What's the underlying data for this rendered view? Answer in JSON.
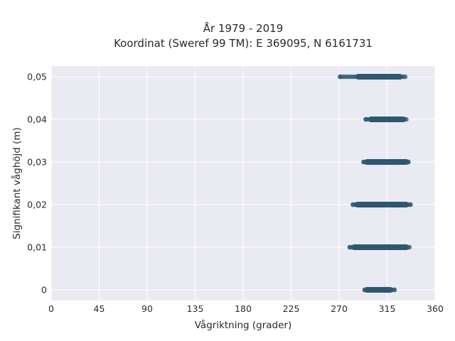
{
  "chart_data": {
    "type": "scatter",
    "title_line1": "År 1979 - 2019",
    "title_line2": "Koordinat (Sweref 99 TM): E 369095, N 6161731",
    "xlabel": "Vågriktning (grader)",
    "ylabel": "Signifikant våghöjd (m)",
    "xlim": [
      0,
      360
    ],
    "ylim": [
      -0.0025,
      0.0525
    ],
    "x_ticks": [
      0,
      45,
      90,
      135,
      180,
      225,
      270,
      315,
      360
    ],
    "y_ticks": [
      {
        "value": 0,
        "label": "0"
      },
      {
        "value": 0.01,
        "label": "0,01"
      },
      {
        "value": 0.02,
        "label": "0,02"
      },
      {
        "value": 0.03,
        "label": "0,03"
      },
      {
        "value": 0.04,
        "label": "0,04"
      },
      {
        "value": 0.05,
        "label": "0,05"
      }
    ],
    "grid": true,
    "background": "#eaeaf2",
    "marker_color": "#2e5870",
    "series": [
      {
        "y": 0.05,
        "x_min": 271,
        "x_dense_start": 288,
        "x_dense_end": 327,
        "x_max": 332
      },
      {
        "y": 0.04,
        "x_min": 295,
        "x_dense_start": 300,
        "x_dense_end": 330,
        "x_max": 333
      },
      {
        "y": 0.03,
        "x_min": 293,
        "x_dense_start": 296,
        "x_dense_end": 333,
        "x_max": 335
      },
      {
        "y": 0.02,
        "x_min": 283,
        "x_dense_start": 287,
        "x_dense_end": 333,
        "x_max": 337
      },
      {
        "y": 0.01,
        "x_min": 280,
        "x_dense_start": 284,
        "x_dense_end": 333,
        "x_max": 336
      },
      {
        "y": 0,
        "x_min": 294,
        "x_dense_start": 296,
        "x_dense_end": 318,
        "x_max": 322
      }
    ]
  }
}
